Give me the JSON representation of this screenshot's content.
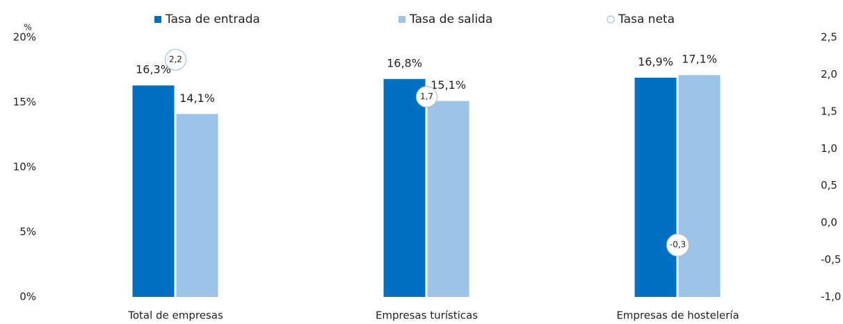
{
  "chart_data": {
    "type": "bar",
    "y_axis_label": "%",
    "categories": [
      "Total de empresas",
      "Empresas turísticas",
      "Empresas de hostelería"
    ],
    "series": [
      {
        "name": "Tasa de entrada",
        "color": "#0070c0",
        "values": [
          16.3,
          16.8,
          16.9
        ],
        "value_labels": [
          "16,3%",
          "16,8%",
          "16,9%"
        ]
      },
      {
        "name": "Tasa de salida",
        "color": "#9dc3e6",
        "values": [
          14.1,
          15.1,
          17.1
        ],
        "value_labels": [
          "14,1%",
          "15,1%",
          "17,1%"
        ]
      },
      {
        "name": "Tasa neta",
        "color": "#9dc3e6",
        "axis": "y2",
        "values": [
          2.2,
          1.7,
          -0.3
        ],
        "value_labels": [
          "2,2",
          "1,7",
          "-0,3"
        ]
      }
    ],
    "ylim": [
      0,
      20
    ],
    "yticks": [
      {
        "value": 0,
        "label": "0%"
      },
      {
        "value": 5,
        "label": "5%"
      },
      {
        "value": 10,
        "label": "10%"
      },
      {
        "value": 15,
        "label": "15%"
      },
      {
        "value": 20,
        "label": "20%"
      }
    ],
    "y2lim": [
      -1.0,
      2.5
    ],
    "y2ticks": [
      {
        "value": -1.0,
        "label": "-1,0"
      },
      {
        "value": -0.5,
        "label": "-0,5"
      },
      {
        "value": 0,
        "label": "0,0"
      },
      {
        "value": 0.5,
        "label": "0,5"
      },
      {
        "value": 1.0,
        "label": "1,0"
      },
      {
        "value": 1.5,
        "label": "1,5"
      },
      {
        "value": 2.0,
        "label": "2,0"
      },
      {
        "value": 2.5,
        "label": "2,5"
      }
    ],
    "grid": false,
    "legend": "top"
  }
}
